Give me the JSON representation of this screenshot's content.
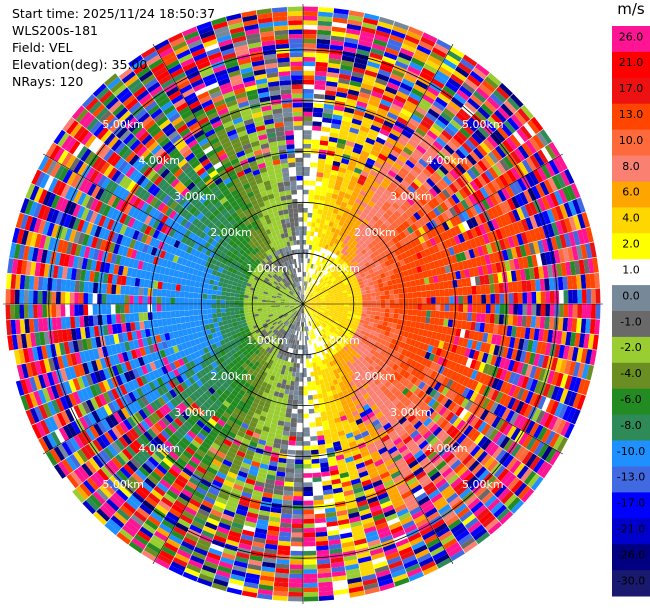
{
  "header": {
    "start_time": "Start time: 2025/11/24 18:50:37",
    "instrument": "WLS200s-181",
    "field": "Field: VEL",
    "elevation": "Elevation(deg): 35.00",
    "nrays": "NRays: 120"
  },
  "colorbar": {
    "unit": "m/s",
    "levels": [
      {
        "label": "26.0",
        "color": "#ff1493"
      },
      {
        "label": "21.0",
        "color": "#ff0000"
      },
      {
        "label": "17.0",
        "color": "#ee1111"
      },
      {
        "label": "13.0",
        "color": "#ff4500"
      },
      {
        "label": "10.0",
        "color": "#ff6a3c"
      },
      {
        "label": "8.0",
        "color": "#fa8072"
      },
      {
        "label": "6.0",
        "color": "#ffa500"
      },
      {
        "label": "4.0",
        "color": "#ffd700"
      },
      {
        "label": "2.0",
        "color": "#ffff00"
      },
      {
        "label": "1.0",
        "color": "#ffffff"
      },
      {
        "label": "0.0",
        "color": "#778899"
      },
      {
        "label": "-1.0",
        "color": "#696969"
      },
      {
        "label": "-2.0",
        "color": "#9acd32"
      },
      {
        "label": "-4.0",
        "color": "#6b8e23"
      },
      {
        "label": "-6.0",
        "color": "#228b22"
      },
      {
        "label": "-8.0",
        "color": "#2e8b57"
      },
      {
        "label": "-10.0",
        "color": "#1e90ff"
      },
      {
        "label": "-13.0",
        "color": "#4169e1"
      },
      {
        "label": "-17.0",
        "color": "#0000ff"
      },
      {
        "label": "-21.0",
        "color": "#0000cd"
      },
      {
        "label": "-26.0",
        "color": "#000080"
      },
      {
        "label": "-30.0",
        "color": "#191970"
      }
    ]
  },
  "chart_data": {
    "type": "heatmap",
    "projection": "polar-ppi",
    "field": "VEL",
    "unit": "m/s",
    "elevation_deg": 35.0,
    "n_rays": 120,
    "range_rings_km": [
      1.0,
      2.0,
      3.0,
      4.0,
      5.0
    ],
    "ring_labels": [
      "1.00km",
      "2.00km",
      "3.00km",
      "4.00km",
      "5.00km"
    ],
    "max_range_km": 5.9,
    "grid": true,
    "wind_pattern": {
      "direction_toward_deg_clockwise_from_north": 90,
      "speed_scale_m_s": 12,
      "inner_noise_threshold_km": 1.2
    }
  }
}
